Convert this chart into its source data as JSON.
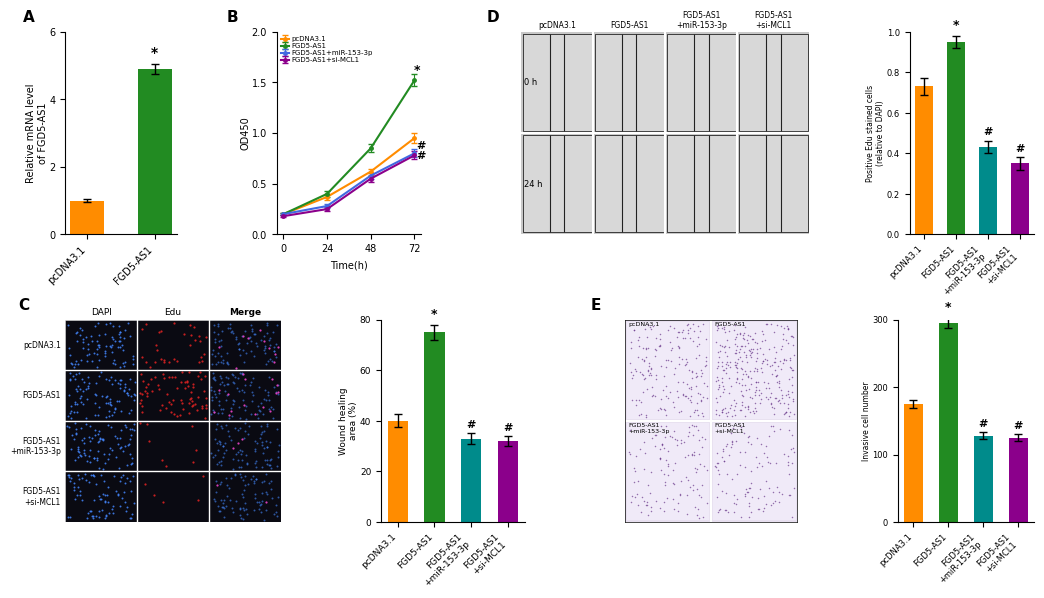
{
  "panel_A": {
    "categories": [
      "pcDNA3.1",
      "FGD5-AS1"
    ],
    "values": [
      1.0,
      4.9
    ],
    "errors": [
      0.05,
      0.15
    ],
    "colors": [
      "#FF8C00",
      "#228B22"
    ],
    "ylabel": "Relative mRNA level\nof FGD5-AS1",
    "ylim": [
      0,
      6
    ],
    "yticks": [
      0,
      2,
      4,
      6
    ]
  },
  "panel_B": {
    "time": [
      0,
      24,
      48,
      72
    ],
    "pcDNA31": [
      0.2,
      0.37,
      0.62,
      0.95
    ],
    "FGD5AS1": [
      0.2,
      0.4,
      0.85,
      1.52
    ],
    "FGD5AS1_miR": [
      0.2,
      0.28,
      0.58,
      0.8
    ],
    "FGD5AS1_siMCL1": [
      0.18,
      0.25,
      0.55,
      0.78
    ],
    "errors_pcDNA31": [
      0.01,
      0.03,
      0.03,
      0.05
    ],
    "errors_FGD5AS1": [
      0.01,
      0.03,
      0.04,
      0.06
    ],
    "errors_FGD5AS1_miR": [
      0.01,
      0.02,
      0.03,
      0.04
    ],
    "errors_FGD5AS1_siMCL1": [
      0.01,
      0.02,
      0.03,
      0.04
    ],
    "colors": [
      "#FF8C00",
      "#228B22",
      "#4169E1",
      "#8B008B"
    ],
    "labels": [
      "pcDNA3.1",
      "FGD5-AS1",
      "FGD5-AS1+miR-153-3p",
      "FGD5-AS1+si-MCL1"
    ],
    "ylabel": "OD450",
    "xlabel": "Time(h)",
    "ylim": [
      0,
      2.0
    ],
    "yticks": [
      0.0,
      0.5,
      1.0,
      1.5,
      2.0
    ],
    "xticks": [
      0,
      24,
      48,
      72
    ]
  },
  "panel_C_bar": {
    "categories": [
      "pcDNA3.1",
      "FGD5-AS1",
      "FGD5-AS1\n+miR-153-3p",
      "FGD5-AS1\n+si-MCL1"
    ],
    "values": [
      40,
      75,
      33,
      32
    ],
    "errors": [
      2.5,
      3.0,
      2.0,
      2.0
    ],
    "colors": [
      "#FF8C00",
      "#228B22",
      "#008B8B",
      "#8B008B"
    ],
    "ylabel": "Wound healing\narea (%)",
    "ylim": [
      0,
      80
    ],
    "yticks": [
      0,
      20,
      40,
      60,
      80
    ]
  },
  "panel_D_bar": {
    "categories": [
      "pcDNA3.1",
      "FGD5-AS1",
      "FGD5-AS1\n+miR-153-3p",
      "FGD5-AS1\n+si-MCL1"
    ],
    "values": [
      0.73,
      0.95,
      0.43,
      0.35
    ],
    "errors": [
      0.04,
      0.03,
      0.03,
      0.03
    ],
    "colors": [
      "#FF8C00",
      "#228B22",
      "#008B8B",
      "#8B008B"
    ],
    "ylabel": "Positive Edu stained cells\n(relative to DAPI)",
    "ylim": [
      0,
      1.0
    ],
    "yticks": [
      0.0,
      0.2,
      0.4,
      0.6,
      0.8,
      1.0
    ]
  },
  "panel_E_bar": {
    "categories": [
      "pcDNA3.1",
      "FGD5-AS1",
      "FGD5-AS1\n+miR-153-3p",
      "FGD5-AS1\n+si-MCL1"
    ],
    "values": [
      175,
      295,
      128,
      125
    ],
    "errors": [
      6,
      8,
      5,
      5
    ],
    "colors": [
      "#FF8C00",
      "#228B22",
      "#008B8B",
      "#8B008B"
    ],
    "ylabel": "Invasive cell number",
    "ylim": [
      0,
      300
    ],
    "yticks": [
      0,
      100,
      200,
      300
    ]
  },
  "bg_color": "#FFFFFF"
}
